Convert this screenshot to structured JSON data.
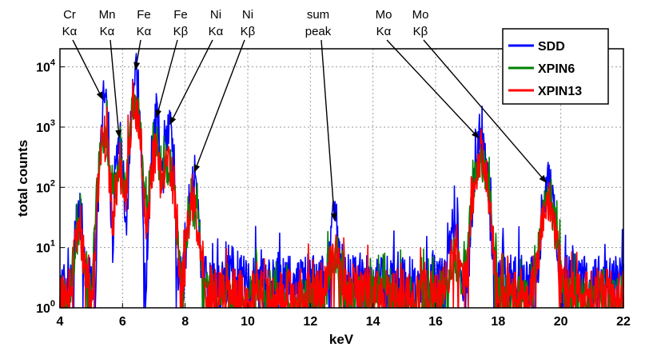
{
  "chart_data": {
    "type": "line",
    "title": "",
    "xlabel": "keV",
    "ylabel": "total counts",
    "xlim": [
      4,
      22
    ],
    "ylim": [
      1,
      20000
    ],
    "yscale": "log",
    "grid": true,
    "x_ticks": [
      "4",
      "6",
      "8",
      "10",
      "12",
      "14",
      "16",
      "18",
      "20",
      "22"
    ],
    "y_ticks": [
      {
        "base": "10",
        "exp": "0"
      },
      {
        "base": "10",
        "exp": "1"
      },
      {
        "base": "10",
        "exp": "2"
      },
      {
        "base": "10",
        "exp": "3"
      },
      {
        "base": "10",
        "exp": "4"
      }
    ],
    "legend_position": "top-right",
    "series": [
      {
        "name": "SDD",
        "color": "#0000ff",
        "baseline": 3,
        "noise": 2.5,
        "peaks": [
          [
            4.6,
            40,
            0.07
          ],
          [
            5.41,
            2600,
            0.07
          ],
          [
            5.9,
            600,
            0.075
          ],
          [
            6.4,
            8000,
            0.075
          ],
          [
            7.06,
            1300,
            0.08
          ],
          [
            7.47,
            1000,
            0.08
          ],
          [
            8.26,
            160,
            0.085
          ],
          [
            12.78,
            25,
            0.09
          ],
          [
            16.6,
            12,
            0.1
          ],
          [
            17.45,
            600,
            0.12
          ],
          [
            19.6,
            110,
            0.12
          ]
        ]
      },
      {
        "name": "XPIN6",
        "color": "#008000",
        "baseline": 1.6,
        "noise": 2.2,
        "peaks": [
          [
            4.6,
            14,
            0.11
          ],
          [
            5.41,
            700,
            0.11
          ],
          [
            5.9,
            170,
            0.11
          ],
          [
            6.4,
            2300,
            0.115
          ],
          [
            7.06,
            380,
            0.12
          ],
          [
            7.47,
            240,
            0.12
          ],
          [
            8.26,
            45,
            0.13
          ],
          [
            12.78,
            5,
            0.13
          ],
          [
            16.6,
            5,
            0.14
          ],
          [
            17.45,
            280,
            0.16
          ],
          [
            19.6,
            55,
            0.16
          ]
        ]
      },
      {
        "name": "XPIN13",
        "color": "#ff0000",
        "baseline": 1.9,
        "noise": 2.4,
        "peaks": [
          [
            4.6,
            16,
            0.1
          ],
          [
            5.41,
            650,
            0.1
          ],
          [
            5.9,
            160,
            0.1
          ],
          [
            6.4,
            2200,
            0.105
          ],
          [
            7.06,
            350,
            0.11
          ],
          [
            7.47,
            230,
            0.11
          ],
          [
            8.26,
            42,
            0.12
          ],
          [
            12.78,
            6,
            0.12
          ],
          [
            16.6,
            6,
            0.13
          ],
          [
            17.45,
            260,
            0.15
          ],
          [
            19.6,
            50,
            0.15
          ]
        ]
      }
    ],
    "annotations": [
      {
        "line1": "Cr",
        "line2": "Kα",
        "peak_x": 5.41,
        "peak_y": 2600
      },
      {
        "line1": "Mn",
        "line2": "Kα",
        "peak_x": 5.9,
        "peak_y": 600
      },
      {
        "line1": "Fe",
        "line2": "Kα",
        "peak_x": 6.4,
        "peak_y": 8000
      },
      {
        "line1": "Fe",
        "line2": "Kβ",
        "peak_x": 7.06,
        "peak_y": 1300
      },
      {
        "line1": "Ni",
        "line2": "Kα",
        "peak_x": 7.47,
        "peak_y": 1000
      },
      {
        "line1": "Ni",
        "line2": "Kβ",
        "peak_x": 8.26,
        "peak_y": 160
      },
      {
        "line1": "sum",
        "line2": "peak",
        "peak_x": 12.78,
        "peak_y": 25
      },
      {
        "line1": "Mo",
        "line2": "Kα",
        "peak_x": 17.45,
        "peak_y": 600
      },
      {
        "line1": "Mo",
        "line2": "Kβ",
        "peak_x": 19.6,
        "peak_y": 110
      }
    ]
  }
}
